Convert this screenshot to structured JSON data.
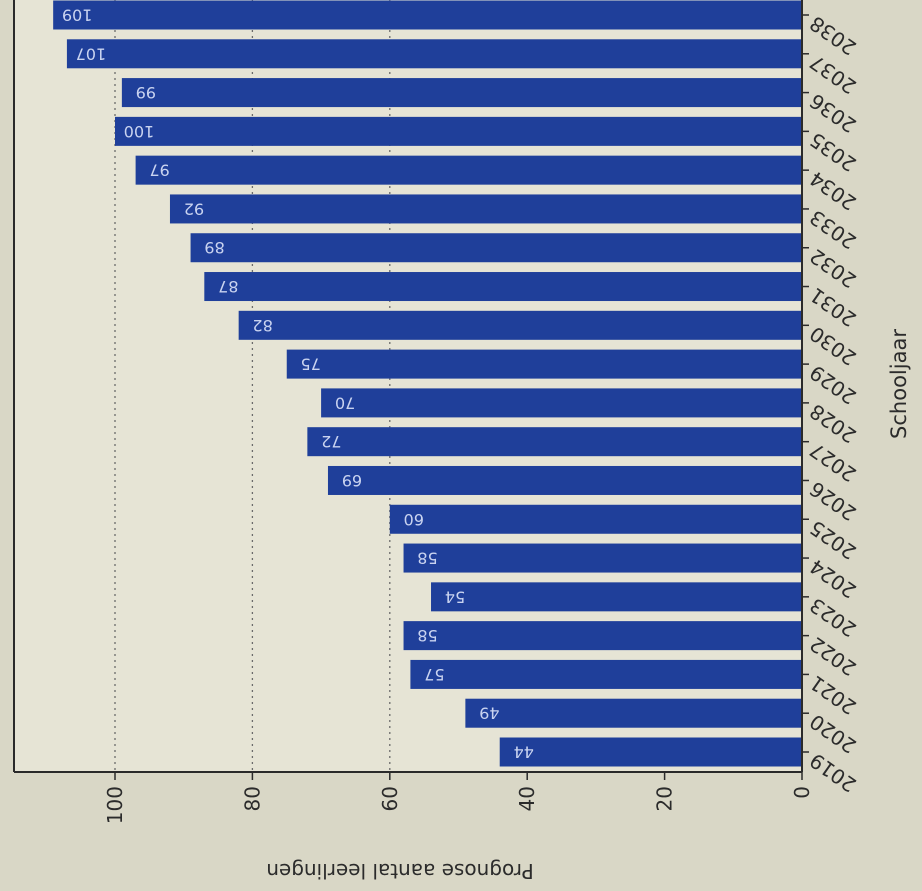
{
  "chart_data": {
    "type": "bar",
    "orientation": "rotated 90° (image scanned sideways)",
    "categories": [
      "2019",
      "2020",
      "2021",
      "2022",
      "2023",
      "2024",
      "2025",
      "2026",
      "2027",
      "2028",
      "2029",
      "2030",
      "2031",
      "2032",
      "2033",
      "2034",
      "2035",
      "2036",
      "2037",
      "2038"
    ],
    "values": [
      44,
      49,
      57,
      58,
      54,
      58,
      60,
      69,
      72,
      70,
      75,
      82,
      87,
      89,
      92,
      97,
      100,
      99,
      107,
      109
    ],
    "value_labels": [
      "44",
      "49",
      "57",
      "58",
      "54",
      "58",
      "60",
      "69",
      "72",
      "70",
      "75",
      "82",
      "87",
      "89",
      "92",
      "97",
      "100",
      "99",
      "107",
      "109"
    ],
    "xlabel": "Schooljaar",
    "ylabel": "Prognose aantal leerlingen",
    "ylim": [
      0,
      115
    ],
    "yticks": [
      0,
      20,
      40,
      60,
      80,
      100
    ],
    "ytick_labels": [
      "0",
      "20",
      "40",
      "60",
      "80",
      "100"
    ],
    "grid": "dotted lines at 60, 80, 100",
    "bar_color": "#1f3f9a",
    "label_color": "#c9d3f0"
  }
}
